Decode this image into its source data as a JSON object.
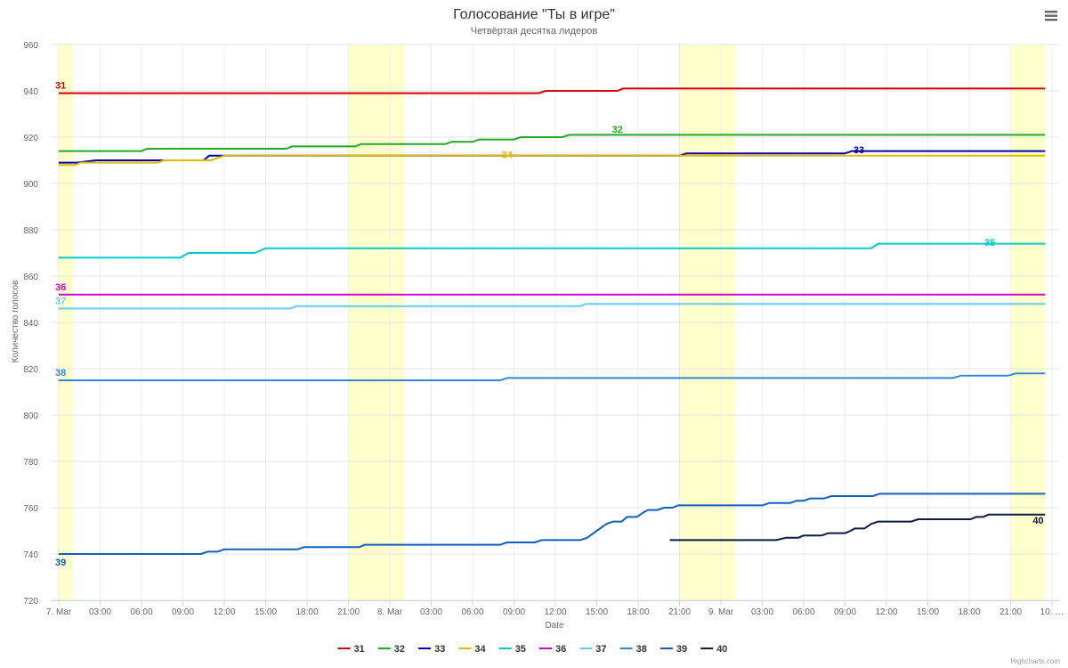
{
  "chart_data": {
    "type": "line",
    "title": "Голосование \"Ты в игре\"",
    "subtitle": "Четвёртая десятка лидеров",
    "xlabel": "Date",
    "ylabel": "Количество голосов",
    "ylim": [
      720,
      960
    ],
    "yticks": [
      "720",
      "740",
      "760",
      "780",
      "800",
      "820",
      "840",
      "860",
      "880",
      "900",
      "920",
      "940",
      "960"
    ],
    "xlim": [
      0,
      72
    ],
    "xticks": [
      {
        "t": 0,
        "label": "7. Mar"
      },
      {
        "t": 3,
        "label": "03:00"
      },
      {
        "t": 6,
        "label": "06:00"
      },
      {
        "t": 9,
        "label": "09:00"
      },
      {
        "t": 12,
        "label": "12:00"
      },
      {
        "t": 15,
        "label": "15:00"
      },
      {
        "t": 18,
        "label": "18:00"
      },
      {
        "t": 21,
        "label": "21:00"
      },
      {
        "t": 24,
        "label": "8. Mar"
      },
      {
        "t": 27,
        "label": "03:00"
      },
      {
        "t": 30,
        "label": "06:00"
      },
      {
        "t": 33,
        "label": "09:00"
      },
      {
        "t": 36,
        "label": "12:00"
      },
      {
        "t": 39,
        "label": "15:00"
      },
      {
        "t": 42,
        "label": "18:00"
      },
      {
        "t": 45,
        "label": "21:00"
      },
      {
        "t": 48,
        "label": "9. Mar"
      },
      {
        "t": 51,
        "label": "03:00"
      },
      {
        "t": 54,
        "label": "06:00"
      },
      {
        "t": 57,
        "label": "09:00"
      },
      {
        "t": 60,
        "label": "12:00"
      },
      {
        "t": 63,
        "label": "15:00"
      },
      {
        "t": 66,
        "label": "18:00"
      },
      {
        "t": 69,
        "label": "21:00"
      },
      {
        "t": 72,
        "label": "10. …"
      }
    ],
    "bands": [
      [
        -0.1,
        1.0
      ],
      [
        21.0,
        25.0
      ],
      [
        45.0,
        49.0
      ],
      [
        69.0,
        71.5
      ]
    ],
    "band_color": "#ffffcc",
    "legend": "bottom-center",
    "grid": true,
    "credits": "Highcharts.com",
    "series": [
      {
        "name": "31",
        "color": "#d40000",
        "label_pos": "start",
        "points": [
          [
            0,
            939
          ],
          [
            34.8,
            939
          ],
          [
            35.3,
            940
          ],
          [
            40.5,
            940
          ],
          [
            40.9,
            941
          ],
          [
            71.5,
            941
          ]
        ]
      },
      {
        "name": "32",
        "color": "#22aa22",
        "label_pos": [
          40.5,
          922
        ],
        "points": [
          [
            0,
            914
          ],
          [
            6,
            914
          ],
          [
            6.4,
            915
          ],
          [
            16.5,
            915
          ],
          [
            16.9,
            916
          ],
          [
            21.5,
            916
          ],
          [
            21.9,
            917
          ],
          [
            28,
            917
          ],
          [
            28.5,
            918
          ],
          [
            30,
            918
          ],
          [
            30.5,
            919
          ],
          [
            33,
            919
          ],
          [
            33.5,
            920
          ],
          [
            36.5,
            920
          ],
          [
            37,
            921
          ],
          [
            71.5,
            921
          ]
        ]
      },
      {
        "name": "33",
        "color": "#0000aa",
        "label_pos": [
          58,
          913
        ],
        "points": [
          [
            0,
            909
          ],
          [
            1.3,
            909
          ],
          [
            2.7,
            910
          ],
          [
            7,
            910
          ],
          [
            7.3,
            910
          ],
          [
            10.5,
            910
          ],
          [
            10.9,
            912
          ],
          [
            45,
            912
          ],
          [
            45.5,
            913
          ],
          [
            57,
            913
          ],
          [
            57.5,
            914
          ],
          [
            71.5,
            914
          ]
        ]
      },
      {
        "name": "34",
        "color": "#ddbb00",
        "label_pos": [
          32.5,
          911
        ],
        "points": [
          [
            0,
            908
          ],
          [
            1.2,
            908
          ],
          [
            1.6,
            909
          ],
          [
            7.2,
            909
          ],
          [
            7.6,
            910
          ],
          [
            11,
            910
          ],
          [
            11.5,
            911
          ],
          [
            12,
            912
          ],
          [
            71.5,
            912
          ]
        ]
      },
      {
        "name": "35",
        "color": "#00cccc",
        "label_pos": [
          67.5,
          873
        ],
        "points": [
          [
            0,
            868
          ],
          [
            8.8,
            868
          ],
          [
            9.4,
            870
          ],
          [
            14.2,
            870
          ],
          [
            15,
            872
          ],
          [
            58.9,
            872
          ],
          [
            59.4,
            874
          ],
          [
            71.5,
            874
          ]
        ]
      },
      {
        "name": "36",
        "color": "#cc00cc",
        "label_pos": "start",
        "points": [
          [
            0,
            852
          ],
          [
            71.5,
            852
          ]
        ]
      },
      {
        "name": "37",
        "color": "#66ccff",
        "label_pos": "start",
        "points": [
          [
            0,
            846
          ],
          [
            16.8,
            846
          ],
          [
            17.2,
            847
          ],
          [
            37.8,
            847
          ],
          [
            38.2,
            848
          ],
          [
            71.5,
            848
          ]
        ]
      },
      {
        "name": "38",
        "color": "#3388dd",
        "label_pos": "start",
        "points": [
          [
            0,
            815
          ],
          [
            32,
            815
          ],
          [
            32.5,
            816
          ],
          [
            64.8,
            816
          ],
          [
            65.4,
            817
          ],
          [
            68.8,
            817
          ],
          [
            69.4,
            818
          ],
          [
            71.5,
            818
          ]
        ]
      },
      {
        "name": "39",
        "color": "#1060c0",
        "label_pos": "start-below",
        "points": [
          [
            0,
            740
          ],
          [
            10.3,
            740
          ],
          [
            10.8,
            741
          ],
          [
            11.5,
            741
          ],
          [
            12,
            742
          ],
          [
            17.3,
            742
          ],
          [
            17.8,
            743
          ],
          [
            21.8,
            743
          ],
          [
            22.2,
            744
          ],
          [
            32,
            744
          ],
          [
            32.5,
            745
          ],
          [
            34.5,
            745
          ],
          [
            35,
            746
          ],
          [
            37.8,
            746
          ],
          [
            38.3,
            747
          ],
          [
            39,
            750
          ],
          [
            39.7,
            753
          ],
          [
            40.2,
            754
          ],
          [
            40.8,
            754
          ],
          [
            41.2,
            756
          ],
          [
            41.9,
            756
          ],
          [
            42.4,
            758
          ],
          [
            42.7,
            759
          ],
          [
            43.4,
            759
          ],
          [
            43.9,
            760
          ],
          [
            44.5,
            760
          ],
          [
            44.9,
            761
          ],
          [
            51,
            761
          ],
          [
            51.5,
            762
          ],
          [
            53,
            762
          ],
          [
            53.5,
            763
          ],
          [
            54,
            763
          ],
          [
            54.5,
            764
          ],
          [
            55.5,
            764
          ],
          [
            56,
            765
          ],
          [
            59,
            765
          ],
          [
            59.5,
            766
          ],
          [
            71.5,
            766
          ]
        ]
      },
      {
        "name": "40",
        "color": "#0a1a44",
        "label_pos": [
          71,
          753
        ],
        "points": [
          [
            44.3,
            746
          ],
          [
            52,
            746
          ],
          [
            52.7,
            747
          ],
          [
            53.6,
            747
          ],
          [
            54,
            748
          ],
          [
            55.3,
            748
          ],
          [
            55.8,
            749
          ],
          [
            57,
            749
          ],
          [
            57.4,
            750
          ],
          [
            57.7,
            751
          ],
          [
            58.4,
            751
          ],
          [
            58.9,
            753
          ],
          [
            59.4,
            754
          ],
          [
            61.8,
            754
          ],
          [
            62.3,
            755
          ],
          [
            66.1,
            755
          ],
          [
            66.5,
            756
          ],
          [
            67,
            756
          ],
          [
            67.4,
            757
          ],
          [
            71.5,
            757
          ]
        ]
      }
    ]
  }
}
